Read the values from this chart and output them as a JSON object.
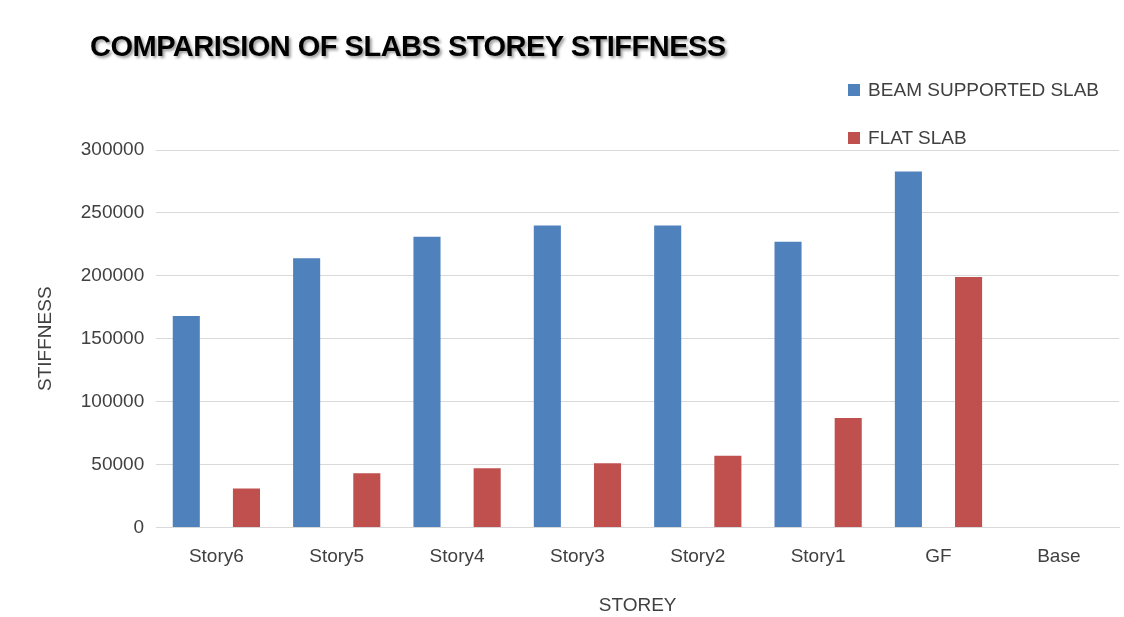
{
  "chart_data": {
    "type": "bar",
    "title": "COMPARISION OF SLABS STOREY STIFFNESS",
    "xlabel": "STOREY",
    "ylabel": "STIFFNESS",
    "categories": [
      "Story6",
      "Story5",
      "Story4",
      "Story3",
      "Story2",
      "Story1",
      "GF",
      "Base"
    ],
    "series": [
      {
        "name": "BEAM SUPPORTED SLAB",
        "color": "#4f81bd",
        "values": [
          168000,
          214000,
          231000,
          240000,
          240000,
          227000,
          283000,
          null
        ]
      },
      {
        "name": "FLAT SLAB",
        "color": "#c0504d",
        "values": [
          31000,
          43000,
          47000,
          51000,
          57000,
          87000,
          199000,
          null
        ]
      }
    ],
    "ylim": [
      0,
      300000
    ],
    "yticks": [
      0,
      50000,
      100000,
      150000,
      200000,
      250000,
      300000
    ],
    "grid": "y",
    "legend": "top right"
  }
}
